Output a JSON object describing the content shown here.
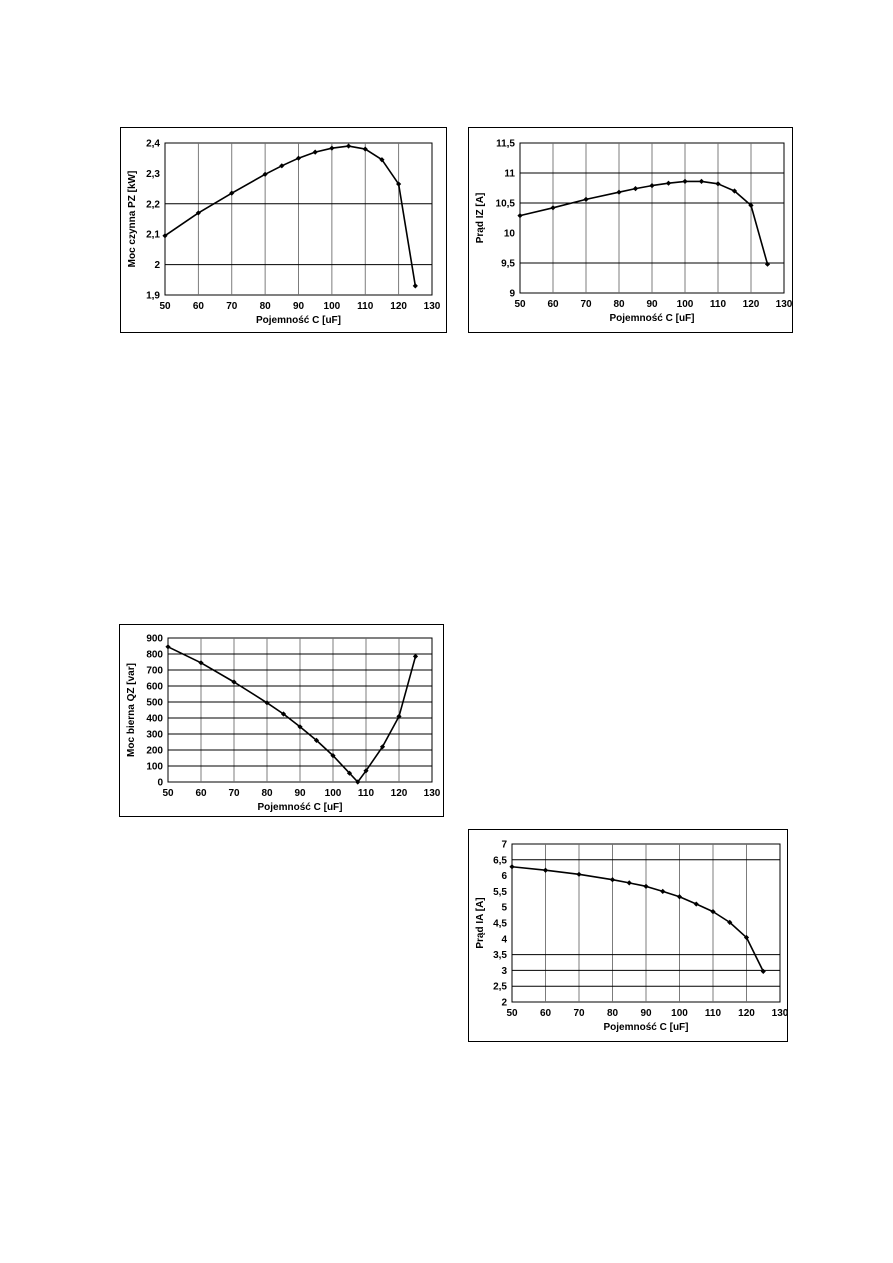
{
  "chart_data": [
    {
      "id": "c1",
      "type": "line",
      "xlabel": "Pojemność C [uF]",
      "ylabel": "Moc  czynna  PZ  [kW]",
      "xlim": [
        50,
        130
      ],
      "ylim": [
        1.9,
        2.4
      ],
      "xticks": [
        50,
        60,
        70,
        80,
        90,
        100,
        110,
        120,
        130
      ],
      "xtick_labels": [
        "50",
        "60",
        "70",
        "80",
        "90",
        "100",
        "110",
        "120",
        "130"
      ],
      "yticks": [
        1.9,
        2.0,
        2.1,
        2.2,
        2.3,
        2.4
      ],
      "ytick_labels": [
        "1,9",
        "2",
        "2,1",
        "2,2",
        "2,3",
        "2,4"
      ],
      "grid": {
        "vertical": [
          60,
          70,
          80,
          90,
          100,
          110,
          120
        ],
        "horizontal": [
          2.0,
          2.2
        ]
      },
      "series": [
        {
          "x": [
            50,
            60,
            70,
            80,
            85,
            90,
            95,
            100,
            105,
            110,
            115,
            120,
            125
          ],
          "y": [
            2.095,
            2.17,
            2.235,
            2.297,
            2.325,
            2.35,
            2.37,
            2.383,
            2.39,
            2.38,
            2.345,
            2.265,
            1.93
          ]
        }
      ]
    },
    {
      "id": "c2",
      "type": "line",
      "xlabel": "Pojemność C [uF]",
      "ylabel": "Prąd IZ  [A]",
      "xlim": [
        50,
        130
      ],
      "ylim": [
        9,
        11.5
      ],
      "xticks": [
        50,
        60,
        70,
        80,
        90,
        100,
        110,
        120,
        130
      ],
      "xtick_labels": [
        "50",
        "60",
        "70",
        "80",
        "90",
        "100",
        "110",
        "120",
        "130"
      ],
      "yticks": [
        9,
        9.5,
        10,
        10.5,
        11,
        11.5
      ],
      "ytick_labels": [
        "9",
        "9,5",
        "10",
        "10,5",
        "11",
        "11,5"
      ],
      "grid": {
        "vertical": [
          60,
          70,
          80,
          90,
          100,
          110,
          120
        ],
        "horizontal": [
          9.5,
          10.5,
          11
        ]
      },
      "series": [
        {
          "x": [
            50,
            60,
            70,
            80,
            85,
            90,
            95,
            100,
            105,
            110,
            115,
            120,
            125
          ],
          "y": [
            10.29,
            10.42,
            10.56,
            10.68,
            10.74,
            10.79,
            10.83,
            10.86,
            10.86,
            10.82,
            10.7,
            10.46,
            9.48
          ]
        }
      ]
    },
    {
      "id": "c3",
      "type": "line",
      "xlabel": "Pojemność C [uF]",
      "ylabel": "Moc  bierna  QZ  [var]",
      "xlim": [
        50,
        130
      ],
      "ylim": [
        0,
        900
      ],
      "xticks": [
        50,
        60,
        70,
        80,
        90,
        100,
        110,
        120,
        130
      ],
      "xtick_labels": [
        "50",
        "60",
        "70",
        "80",
        "90",
        "100",
        "110",
        "120",
        "130"
      ],
      "yticks": [
        0,
        100,
        200,
        300,
        400,
        500,
        600,
        700,
        800,
        900
      ],
      "ytick_labels": [
        "0",
        "100",
        "200",
        "300",
        "400",
        "500",
        "600",
        "700",
        "800",
        "900"
      ],
      "grid": {
        "vertical": [
          60,
          70,
          80,
          90,
          100,
          110,
          120
        ],
        "horizontal": [
          100,
          200,
          300,
          400,
          500,
          600,
          700,
          800
        ]
      },
      "series": [
        {
          "x": [
            50,
            60,
            70,
            80,
            85,
            90,
            95,
            100,
            105,
            107.5,
            110,
            115,
            120,
            125
          ],
          "y": [
            845,
            745,
            625,
            495,
            425,
            345,
            260,
            165,
            55,
            0,
            70,
            220,
            410,
            785
          ]
        }
      ]
    },
    {
      "id": "c4",
      "type": "line",
      "xlabel": "Pojemność C [uF]",
      "ylabel": "Prąd  IA  [A]",
      "xlim": [
        50,
        130
      ],
      "ylim": [
        2,
        7
      ],
      "xticks": [
        50,
        60,
        70,
        80,
        90,
        100,
        110,
        120,
        130
      ],
      "xtick_labels": [
        "50",
        "60",
        "70",
        "80",
        "90",
        "100",
        "110",
        "120",
        "130"
      ],
      "yticks": [
        2,
        2.5,
        3,
        3.5,
        4,
        4.5,
        5,
        5.5,
        6,
        6.5,
        7
      ],
      "ytick_labels": [
        "2",
        "2,5",
        "3",
        "3,5",
        "4",
        "4,5",
        "5",
        "5,5",
        "6",
        "6,5",
        "7"
      ],
      "grid": {
        "vertical": [
          60,
          70,
          80,
          90,
          100,
          110,
          120
        ],
        "horizontal": [
          2.5,
          3,
          3.5,
          6.5
        ]
      },
      "series": [
        {
          "x": [
            50,
            60,
            70,
            80,
            85,
            90,
            95,
            100,
            105,
            110,
            115,
            120,
            125
          ],
          "y": [
            6.28,
            6.17,
            6.04,
            5.87,
            5.77,
            5.66,
            5.5,
            5.33,
            5.1,
            4.86,
            4.52,
            4.04,
            2.97
          ]
        }
      ]
    }
  ]
}
